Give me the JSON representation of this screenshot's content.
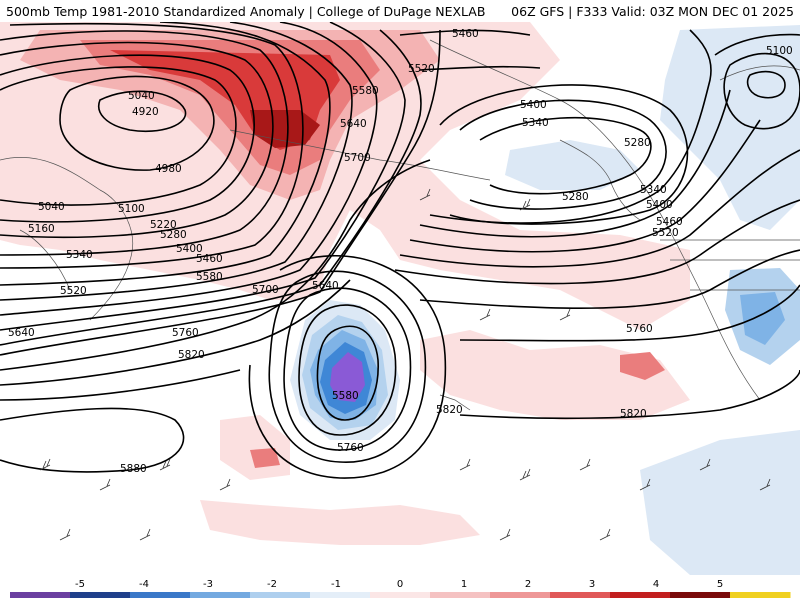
{
  "header": {
    "title": "500mb Temp 1981-2010 Standardized Anomaly | College of DuPage NEXLAB",
    "run_info": "06Z GFS | F333 Valid: 03Z MON DEC 01 2025"
  },
  "colors": {
    "pos1": "#fbe0e0",
    "pos2": "#f4b3b3",
    "pos3": "#ea7d7d",
    "pos4": "#d93a3a",
    "pos5": "#a81818",
    "pos6": "#6e0505",
    "neg1": "#dce8f5",
    "neg2": "#b4d2ee",
    "neg3": "#7fb3e6",
    "neg4": "#3f87d6",
    "neg5": "#8a5ad6",
    "contour": "#000000",
    "coast": "#555555"
  },
  "contour_labels": [
    {
      "id": "5460-top",
      "text": "5460"
    },
    {
      "id": "5520-top",
      "text": "5520"
    },
    {
      "id": "5580-top",
      "text": "5580"
    },
    {
      "id": "5640-top",
      "text": "5640"
    },
    {
      "id": "5700-top",
      "text": "5700"
    },
    {
      "id": "5040-w",
      "text": "5040"
    },
    {
      "id": "4920",
      "text": "4920"
    },
    {
      "id": "4980",
      "text": "4980"
    },
    {
      "id": "5040-sw",
      "text": "5040"
    },
    {
      "id": "5100-w",
      "text": "5100"
    },
    {
      "id": "5160",
      "text": "5160"
    },
    {
      "id": "5220",
      "text": "5220"
    },
    {
      "id": "5280-w",
      "text": "5280"
    },
    {
      "id": "5340-w",
      "text": "5340"
    },
    {
      "id": "5400-w",
      "text": "5400"
    },
    {
      "id": "5460-w",
      "text": "5460"
    },
    {
      "id": "5520-w",
      "text": "5520"
    },
    {
      "id": "5580-w",
      "text": "5580"
    },
    {
      "id": "5640-w",
      "text": "5640"
    },
    {
      "id": "5700-c",
      "text": "5700"
    },
    {
      "id": "5640-c",
      "text": "5640"
    },
    {
      "id": "5760-w",
      "text": "5760"
    },
    {
      "id": "5820-w",
      "text": "5820"
    },
    {
      "id": "5880",
      "text": "5880"
    },
    {
      "id": "5580-low",
      "text": "5580"
    },
    {
      "id": "5760-low",
      "text": "5760"
    },
    {
      "id": "5820-c",
      "text": "5820"
    },
    {
      "id": "5400-e",
      "text": "5400"
    },
    {
      "id": "5340-e",
      "text": "5340"
    },
    {
      "id": "5280-e",
      "text": "5280"
    },
    {
      "id": "5280-e2",
      "text": "5280"
    },
    {
      "id": "5100-e",
      "text": "5100"
    },
    {
      "id": "5340-e2",
      "text": "5340"
    },
    {
      "id": "5400-e2",
      "text": "5400"
    },
    {
      "id": "5460-e",
      "text": "5460"
    },
    {
      "id": "5520-e",
      "text": "5520"
    },
    {
      "id": "5760-e",
      "text": "5760"
    },
    {
      "id": "5820-e",
      "text": "5820"
    }
  ],
  "legend": {
    "ticks": [
      "-5",
      "-4",
      "-3",
      "-2",
      "-1",
      "0",
      "1",
      "2",
      "3",
      "4",
      "5"
    ],
    "colors": [
      "#6b3fa0",
      "#1f3f8a",
      "#3a78c8",
      "#73a9e0",
      "#aecfee",
      "#e4eef8",
      "#fbe6e6",
      "#f5c2c2",
      "#ee9797",
      "#e05858",
      "#c21f1f",
      "#7a0b0b",
      "#f0d020"
    ]
  }
}
